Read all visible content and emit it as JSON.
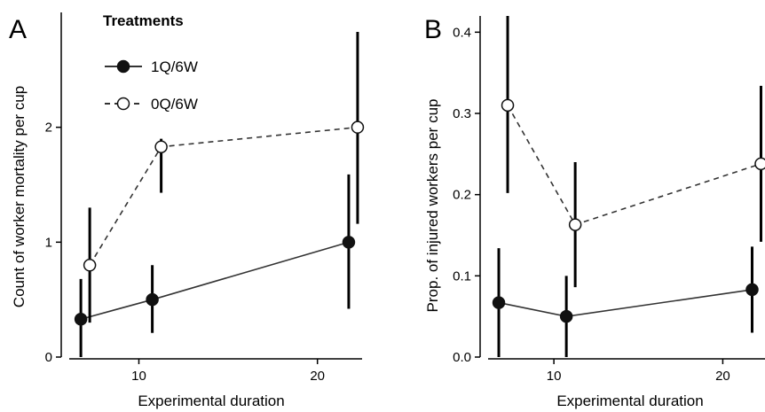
{
  "legend": {
    "title": "Treatments",
    "entries": [
      "1Q/6W",
      "0Q/6W"
    ]
  },
  "chart_data": [
    {
      "type": "line",
      "panel": "A",
      "xlabel": "Experimental duration",
      "ylabel": "Count of worker mortality per cup",
      "xlim": [
        6,
        22.5
      ],
      "ylim": [
        0,
        3
      ],
      "xticks": [
        10,
        20
      ],
      "yticks": [
        0,
        1,
        2
      ],
      "legend_position": "top-left",
      "grid": false,
      "series": [
        {
          "name": "1Q/6W",
          "style": "solid, filled circles",
          "x": [
            7,
            11,
            22
          ],
          "y": [
            0.33,
            0.5,
            1.0
          ],
          "error_low": [
            0.0,
            0.21,
            0.42
          ],
          "error_high": [
            0.68,
            0.8,
            1.59
          ]
        },
        {
          "name": "0Q/6W",
          "style": "dashed, open circles",
          "x": [
            7,
            11,
            22
          ],
          "y": [
            0.8,
            1.83,
            2.0
          ],
          "error_low": [
            0.3,
            1.43,
            1.16
          ],
          "error_high": [
            1.3,
            1.9,
            2.83
          ]
        }
      ]
    },
    {
      "type": "line",
      "panel": "B",
      "xlabel": "Experimental duration",
      "ylabel": "Prop. of injured workers per cup",
      "xlim": [
        6,
        22.5
      ],
      "ylim": [
        0,
        0.42
      ],
      "xticks": [
        10,
        20
      ],
      "yticks": [
        0.0,
        0.1,
        0.2,
        0.3,
        0.4
      ],
      "grid": false,
      "series": [
        {
          "name": "1Q/6W",
          "style": "solid, filled circles",
          "x": [
            7,
            11,
            22
          ],
          "y": [
            0.067,
            0.05,
            0.083
          ],
          "error_low": [
            0.0,
            0.0,
            0.03
          ],
          "error_high": [
            0.134,
            0.1,
            0.136
          ]
        },
        {
          "name": "0Q/6W",
          "style": "dashed, open circles",
          "x": [
            7,
            11,
            22
          ],
          "y": [
            0.31,
            0.163,
            0.238
          ],
          "error_low": [
            0.202,
            0.086,
            0.142
          ],
          "error_high": [
            0.42,
            0.24,
            0.334
          ]
        }
      ]
    }
  ]
}
